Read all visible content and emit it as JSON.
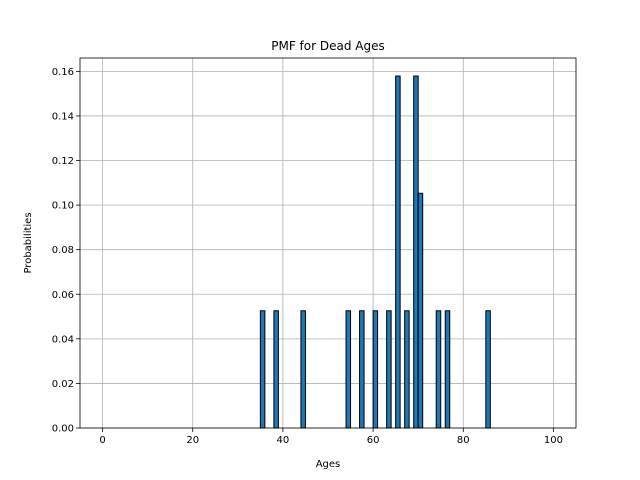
{
  "chart_data": {
    "type": "bar",
    "title": "PMF for Dead Ages",
    "xlabel": "Ages",
    "ylabel": "Probabilities",
    "xlim": [
      -5,
      105
    ],
    "ylim": [
      0,
      0.166
    ],
    "xticks": [
      0,
      20,
      40,
      60,
      80,
      100
    ],
    "xtick_labels": [
      "0",
      "20",
      "40",
      "60",
      "80",
      "100"
    ],
    "yticks": [
      0,
      0.02,
      0.04,
      0.06,
      0.08,
      0.1,
      0.12,
      0.14,
      0.16
    ],
    "ytick_labels": [
      "0.00",
      "0.02",
      "0.04",
      "0.06",
      "0.08",
      "0.10",
      "0.12",
      "0.14",
      "0.16"
    ],
    "grid": true,
    "bar_color": "#1f77b4",
    "bar_edge_color": "#000000",
    "x": [
      35.5,
      38.5,
      44.5,
      54.5,
      57.5,
      60.5,
      63.5,
      65.5,
      67.5,
      69.5,
      70.5,
      74.5,
      76.5,
      85.5
    ],
    "values": [
      0.0526,
      0.0526,
      0.0526,
      0.0526,
      0.0526,
      0.0526,
      0.0526,
      0.1579,
      0.0526,
      0.1579,
      0.1053,
      0.0526,
      0.0526,
      0.0526
    ],
    "bar_width": 1
  }
}
